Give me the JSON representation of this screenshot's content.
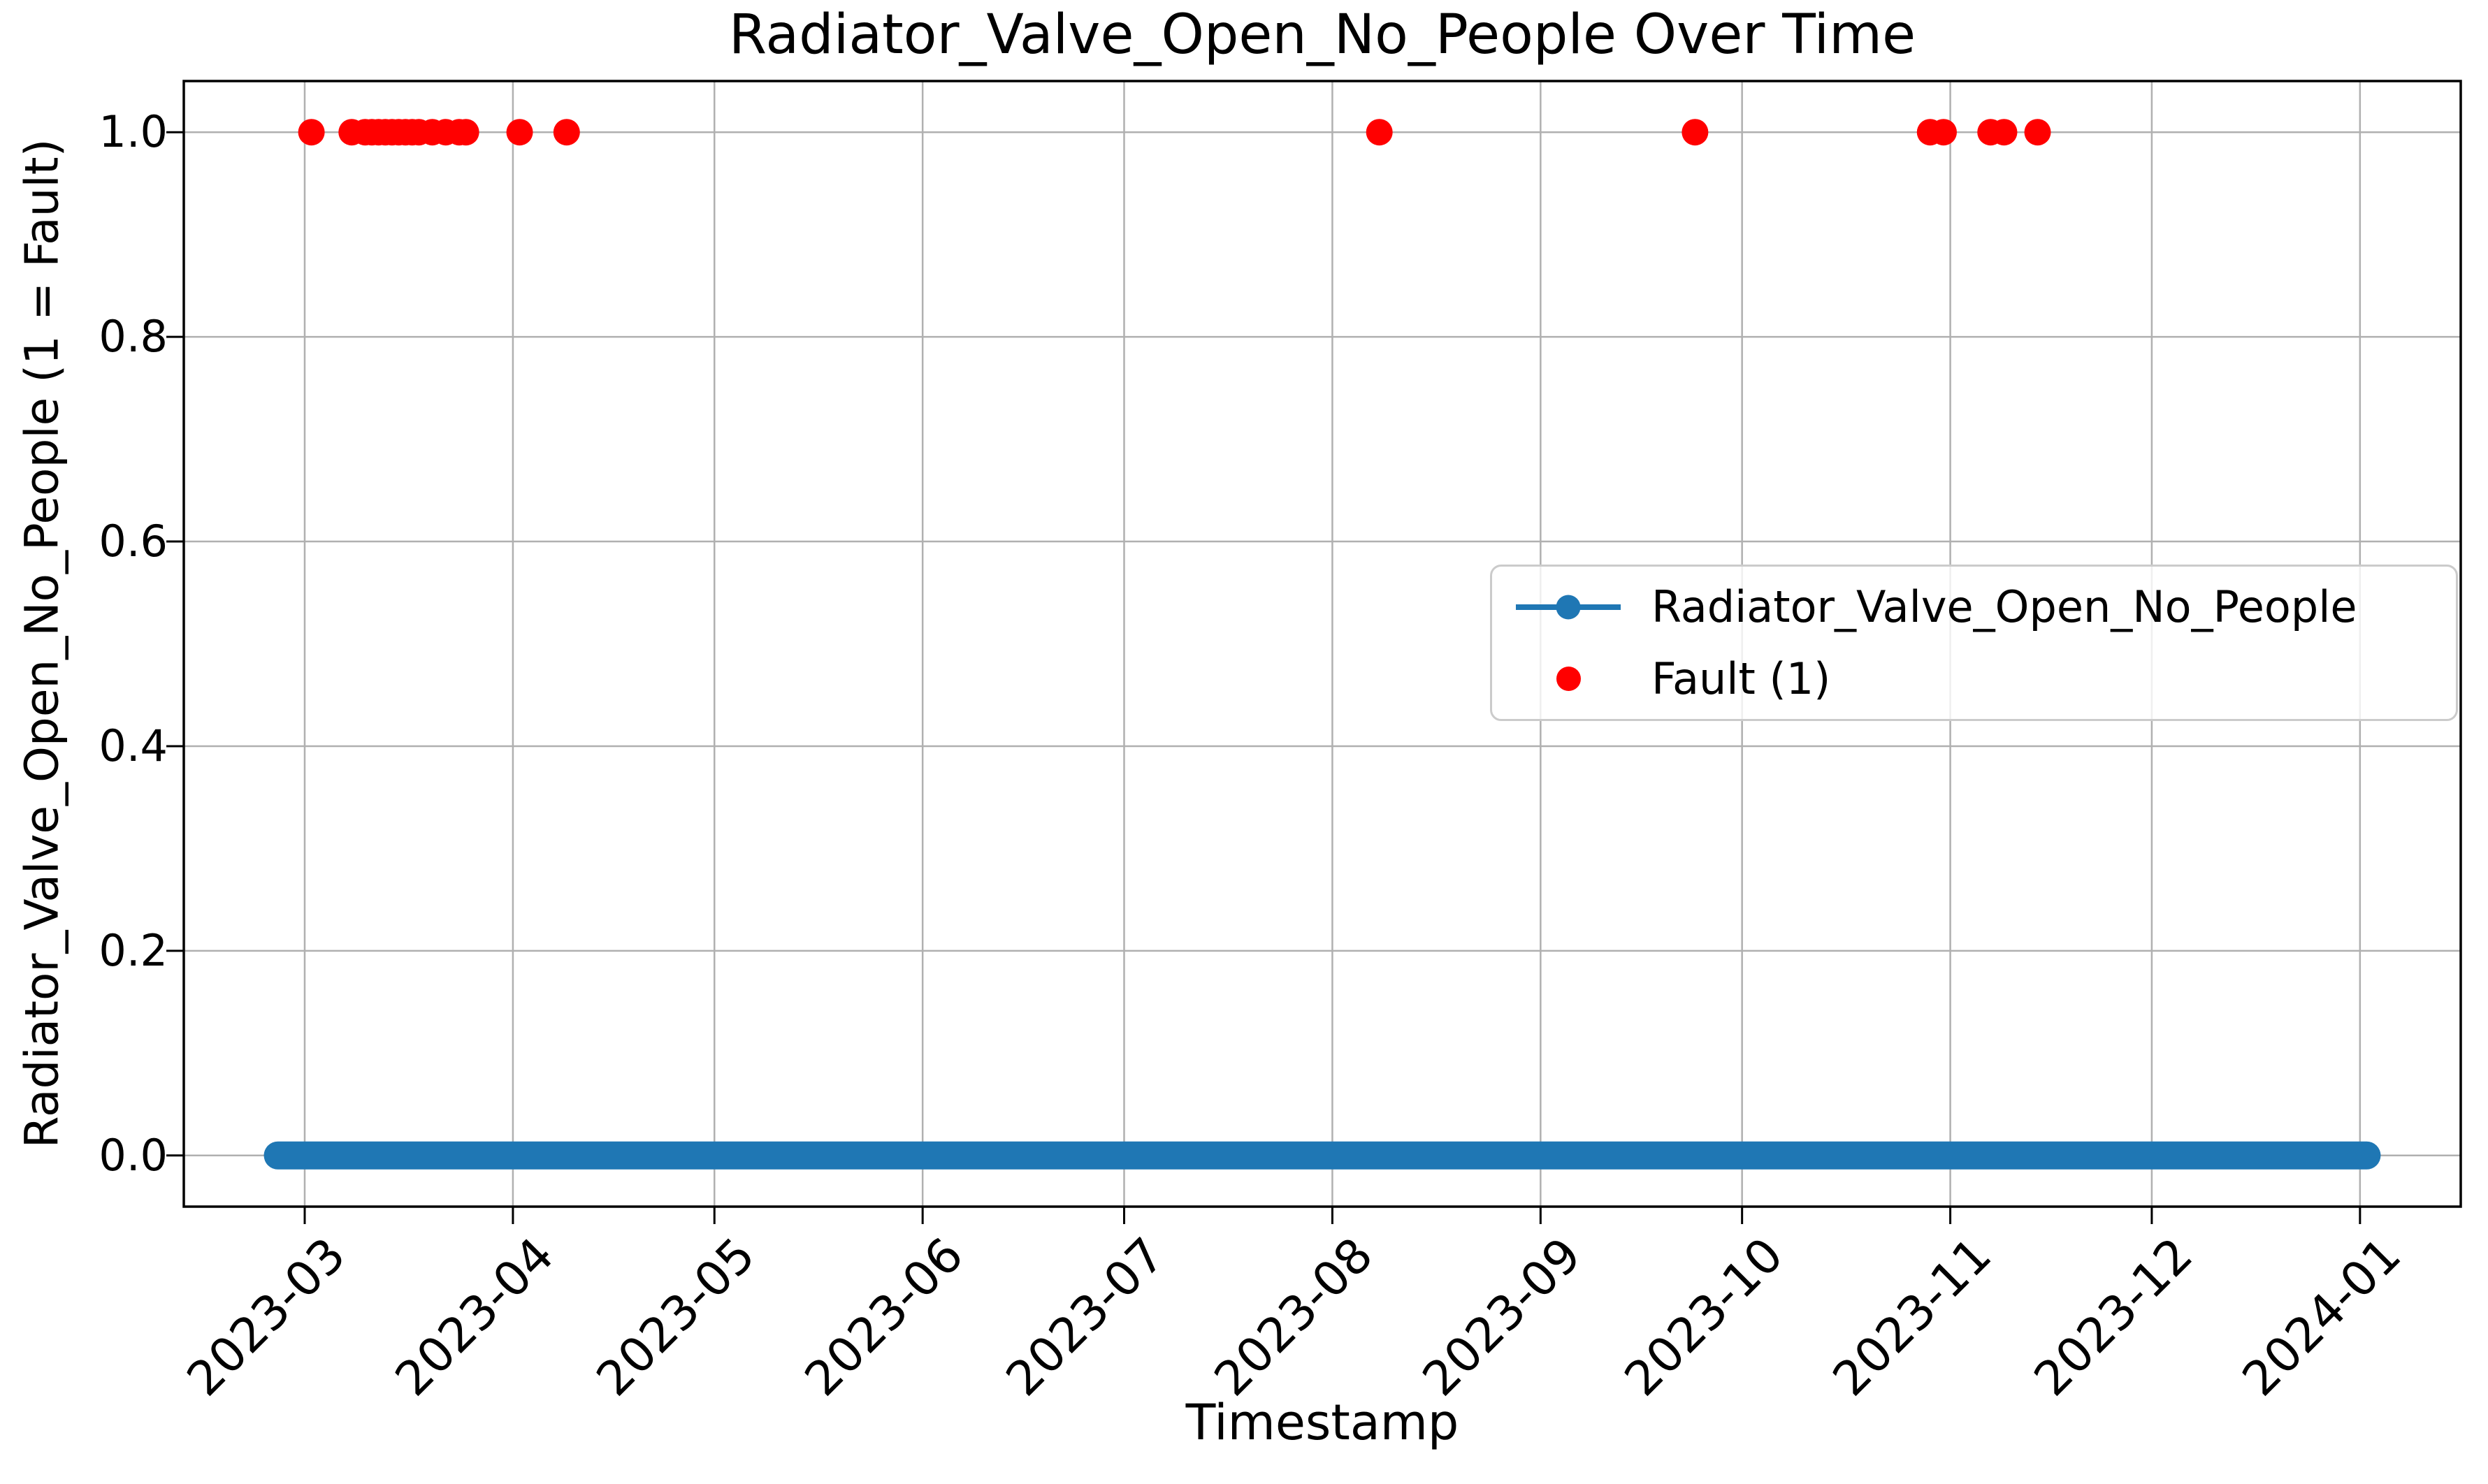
{
  "figure": {
    "title": "Radiator_Valve_Open_No_People Over Time",
    "x_axis_label": "Timestamp",
    "y_axis_label": "Radiator_Valve_Open_No_People (1 = Fault)"
  },
  "legend": {
    "items": [
      {
        "label": "Radiator_Valve_Open_No_People",
        "marker": "line-with-circle-marker",
        "color": "#1f77b4"
      },
      {
        "label": "Fault (1)",
        "marker": "circle",
        "color": "#ff0000"
      }
    ],
    "location": "center-right"
  },
  "chart_data": {
    "type": "line",
    "title": "Radiator_Valve_Open_No_People Over Time",
    "xlabel": "Timestamp",
    "ylabel": "Radiator_Valve_Open_No_People (1 = Fault)",
    "xlim": [
      "2023-02-11",
      "2024-01-16"
    ],
    "ylim": [
      -0.05,
      1.05
    ],
    "grid": true,
    "grid_color": "#b0b0b0",
    "x_ticks": [
      "2023-03-01",
      "2023-04-01",
      "2023-05-01",
      "2023-06-01",
      "2023-07-01",
      "2023-08-01",
      "2023-09-01",
      "2023-10-01",
      "2023-11-01",
      "2023-12-01",
      "2024-01-01"
    ],
    "x_tick_labels": [
      "2023-03",
      "2023-04",
      "2023-05",
      "2023-06",
      "2023-07",
      "2023-08",
      "2023-09",
      "2023-10",
      "2023-11",
      "2023-12",
      "2024-01"
    ],
    "y_ticks": [
      0.0,
      0.2,
      0.4,
      0.6,
      0.8,
      1.0
    ],
    "y_tick_labels": [
      "0.0",
      "0.2",
      "0.4",
      "0.6",
      "0.8",
      "1.0"
    ],
    "x_tick_rotation_deg": 45,
    "series": [
      {
        "name": "Radiator_Valve_Open_No_People",
        "type": "line",
        "color": "#1f77b4",
        "marker": "circle",
        "y_value": 0,
        "x_start": "2023-02-25",
        "x_end": "2024-01-02",
        "description": "dense constant-0 line of marker points spanning the full time range"
      },
      {
        "name": "Fault (1)",
        "type": "scatter",
        "color": "#ff0000",
        "y_value": 1,
        "x": [
          "2023-03-02",
          "2023-03-08",
          "2023-03-10",
          "2023-03-11",
          "2023-03-12",
          "2023-03-13",
          "2023-03-14",
          "2023-03-15",
          "2023-03-16",
          "2023-03-17",
          "2023-03-18",
          "2023-03-20",
          "2023-03-22",
          "2023-03-24",
          "2023-03-25",
          "2023-04-02",
          "2023-04-09",
          "2023-08-08",
          "2023-09-24",
          "2023-10-29",
          "2023-10-31",
          "2023-11-07",
          "2023-11-09",
          "2023-11-14"
        ]
      }
    ]
  }
}
